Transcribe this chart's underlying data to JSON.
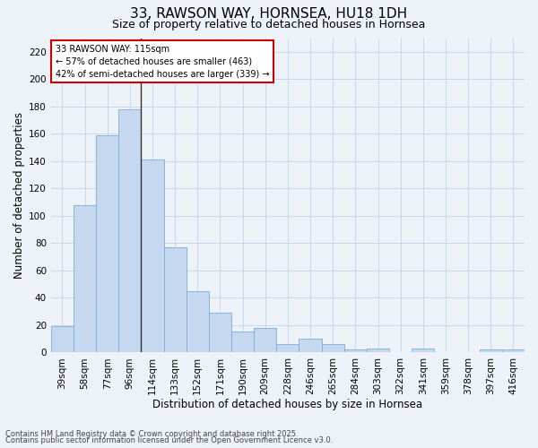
{
  "title": "33, RAWSON WAY, HORNSEA, HU18 1DH",
  "subtitle": "Size of property relative to detached houses in Hornsea",
  "xlabel": "Distribution of detached houses by size in Hornsea",
  "ylabel": "Number of detached properties",
  "categories": [
    "39sqm",
    "58sqm",
    "77sqm",
    "96sqm",
    "114sqm",
    "133sqm",
    "152sqm",
    "171sqm",
    "190sqm",
    "209sqm",
    "228sqm",
    "246sqm",
    "265sqm",
    "284sqm",
    "303sqm",
    "322sqm",
    "341sqm",
    "359sqm",
    "378sqm",
    "397sqm",
    "416sqm"
  ],
  "values": [
    19,
    108,
    159,
    178,
    141,
    77,
    45,
    29,
    15,
    18,
    6,
    10,
    6,
    2,
    3,
    0,
    3,
    0,
    0,
    2,
    2
  ],
  "bar_color": "#c5d8f0",
  "bar_edge_color": "#7aafd4",
  "vline_index": 4,
  "vline_color": "#333333",
  "annotation_line1": "33 RAWSON WAY: 115sqm",
  "annotation_line2": "← 57% of detached houses are smaller (463)",
  "annotation_line3": "42% of semi-detached houses are larger (339) →",
  "annotation_box_color": "#ffffff",
  "annotation_border_color": "#cc0000",
  "ylim": [
    0,
    230
  ],
  "yticks": [
    0,
    20,
    40,
    60,
    80,
    100,
    120,
    140,
    160,
    180,
    200,
    220
  ],
  "grid_color": "#c8d8ec",
  "bg_color": "#edf2f9",
  "footer1": "Contains HM Land Registry data © Crown copyright and database right 2025.",
  "footer2": "Contains public sector information licensed under the Open Government Licence v3.0.",
  "title_fontsize": 11,
  "subtitle_fontsize": 9,
  "xlabel_fontsize": 8.5,
  "ylabel_fontsize": 8.5,
  "tick_fontsize": 7.5,
  "footer_fontsize": 6,
  "annot_fontsize": 7
}
